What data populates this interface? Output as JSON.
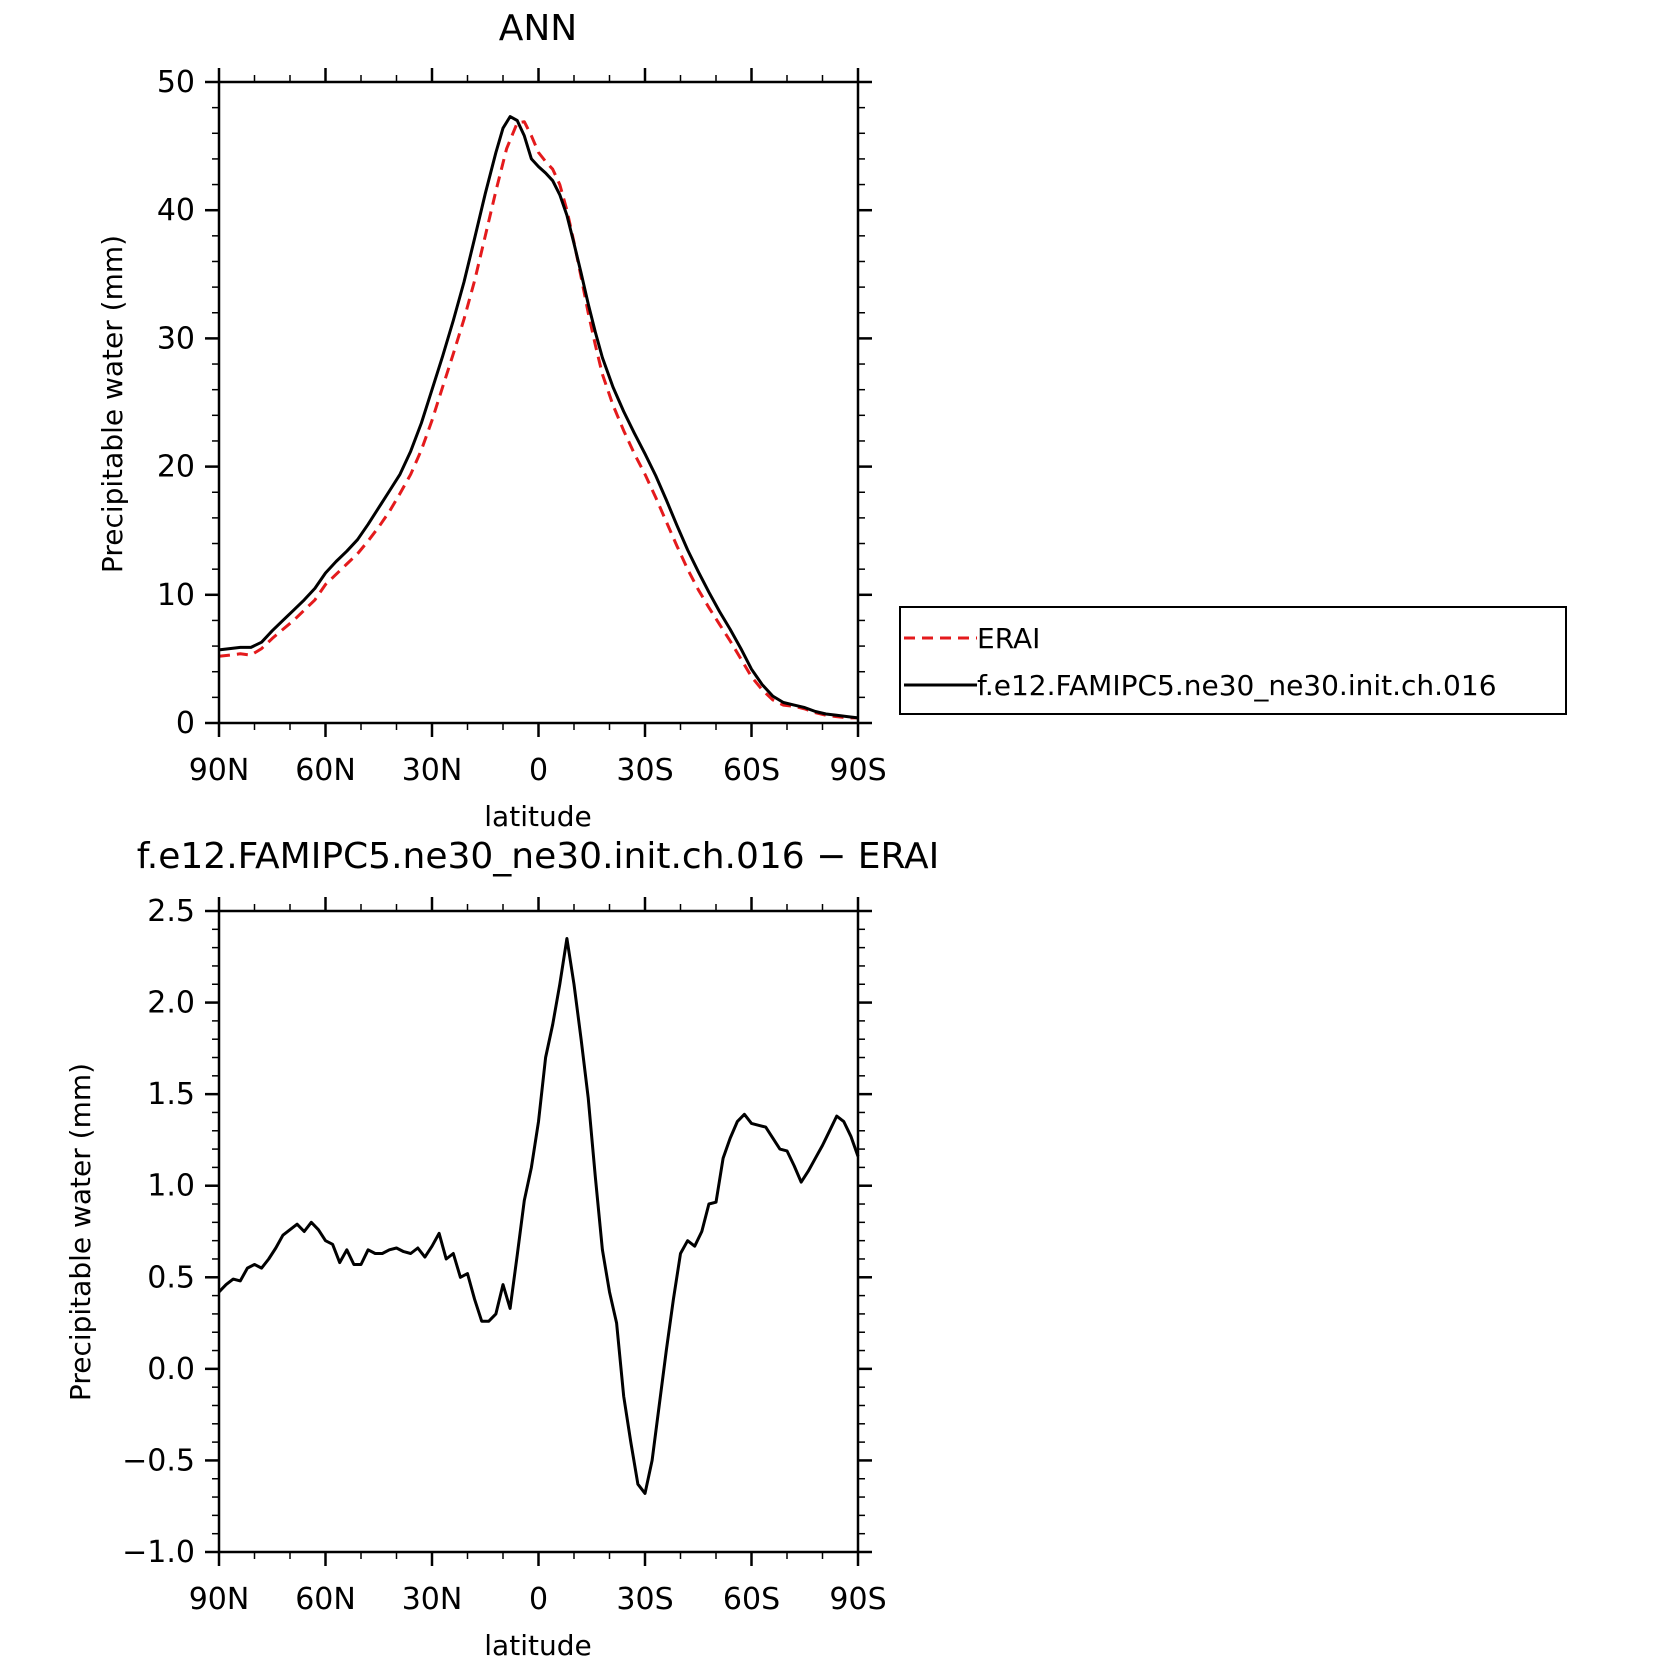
{
  "figure": {
    "background": "#ffffff"
  },
  "chart_data": [
    {
      "type": "line",
      "title": "ANN",
      "xlabel": "latitude",
      "ylabel": "Precipitable water (mm)",
      "xlim": [
        90,
        -90
      ],
      "ylim": [
        0,
        50
      ],
      "x_ticks": [
        90,
        60,
        30,
        0,
        -30,
        -60,
        -90
      ],
      "x_tick_labels": [
        "90N",
        "60N",
        "30N",
        "0",
        "30S",
        "60S",
        "90S"
      ],
      "y_ticks": [
        0,
        10,
        20,
        30,
        40,
        50
      ],
      "y_tick_labels": [
        "0",
        "10",
        "20",
        "30",
        "40",
        "50"
      ],
      "grid": false,
      "legend_position": "right",
      "series": [
        {
          "name": "ERAI",
          "color": "#e41a1c",
          "dash": "dashed",
          "points": [
            [
              90,
              5.2
            ],
            [
              87,
              5.3
            ],
            [
              84,
              5.4
            ],
            [
              81,
              5.3
            ],
            [
              78,
              5.8
            ],
            [
              75,
              6.6
            ],
            [
              72,
              7.3
            ],
            [
              69,
              8.0
            ],
            [
              66,
              8.8
            ],
            [
              63,
              9.6
            ],
            [
              60,
              10.8
            ],
            [
              57,
              11.6
            ],
            [
              54,
              12.4
            ],
            [
              51,
              13.2
            ],
            [
              48,
              14.2
            ],
            [
              45,
              15.3
            ],
            [
              42,
              16.5
            ],
            [
              39,
              17.9
            ],
            [
              36,
              19.4
            ],
            [
              33,
              21.3
            ],
            [
              30,
              23.6
            ],
            [
              27,
              26.2
            ],
            [
              24,
              28.8
            ],
            [
              21,
              31.5
            ],
            [
              18,
              34.5
            ],
            [
              15,
              38.0
            ],
            [
              12,
              41.5
            ],
            [
              9,
              44.8
            ],
            [
              6,
              46.8
            ],
            [
              4,
              46.9
            ],
            [
              2,
              45.8
            ],
            [
              0,
              44.5
            ],
            [
              -2,
              43.8
            ],
            [
              -4,
              43.2
            ],
            [
              -6,
              42.0
            ],
            [
              -8,
              40.0
            ],
            [
              -10,
              37.5
            ],
            [
              -12,
              34.8
            ],
            [
              -14,
              32.0
            ],
            [
              -16,
              29.5
            ],
            [
              -18,
              27.2
            ],
            [
              -21,
              24.8
            ],
            [
              -24,
              22.8
            ],
            [
              -27,
              21.0
            ],
            [
              -30,
              19.4
            ],
            [
              -33,
              17.6
            ],
            [
              -36,
              15.7
            ],
            [
              -39,
              13.8
            ],
            [
              -42,
              12.0
            ],
            [
              -45,
              10.4
            ],
            [
              -48,
              9.0
            ],
            [
              -51,
              7.7
            ],
            [
              -54,
              6.4
            ],
            [
              -57,
              5.0
            ],
            [
              -60,
              3.6
            ],
            [
              -63,
              2.6
            ],
            [
              -66,
              1.8
            ],
            [
              -69,
              1.4
            ],
            [
              -72,
              1.3
            ],
            [
              -75,
              1.1
            ],
            [
              -78,
              0.8
            ],
            [
              -81,
              0.6
            ],
            [
              -84,
              0.5
            ],
            [
              -87,
              0.4
            ],
            [
              -90,
              0.4
            ]
          ]
        },
        {
          "name": "f.e12.FAMIPC5.ne30_ne30.init.ch.016",
          "color": "#000000",
          "dash": "solid",
          "points": [
            [
              90,
              5.7
            ],
            [
              87,
              5.8
            ],
            [
              84,
              5.9
            ],
            [
              81,
              5.9
            ],
            [
              78,
              6.3
            ],
            [
              75,
              7.2
            ],
            [
              72,
              8.0
            ],
            [
              69,
              8.8
            ],
            [
              66,
              9.6
            ],
            [
              63,
              10.5
            ],
            [
              60,
              11.7
            ],
            [
              57,
              12.6
            ],
            [
              54,
              13.4
            ],
            [
              51,
              14.3
            ],
            [
              48,
              15.5
            ],
            [
              45,
              16.8
            ],
            [
              42,
              18.1
            ],
            [
              39,
              19.4
            ],
            [
              36,
              21.2
            ],
            [
              33,
              23.4
            ],
            [
              30,
              26.0
            ],
            [
              27,
              28.6
            ],
            [
              24,
              31.4
            ],
            [
              21,
              34.4
            ],
            [
              18,
              37.8
            ],
            [
              15,
              41.3
            ],
            [
              12,
              44.5
            ],
            [
              10,
              46.4
            ],
            [
              8,
              47.3
            ],
            [
              6,
              47.0
            ],
            [
              4,
              45.8
            ],
            [
              2,
              44.0
            ],
            [
              0,
              43.4
            ],
            [
              -2,
              42.9
            ],
            [
              -4,
              42.3
            ],
            [
              -6,
              41.2
            ],
            [
              -8,
              39.6
            ],
            [
              -10,
              37.4
            ],
            [
              -12,
              35.1
            ],
            [
              -14,
              32.7
            ],
            [
              -16,
              30.5
            ],
            [
              -18,
              28.5
            ],
            [
              -21,
              26.2
            ],
            [
              -24,
              24.3
            ],
            [
              -27,
              22.6
            ],
            [
              -30,
              21.0
            ],
            [
              -33,
              19.3
            ],
            [
              -36,
              17.4
            ],
            [
              -39,
              15.4
            ],
            [
              -42,
              13.5
            ],
            [
              -45,
              11.8
            ],
            [
              -48,
              10.2
            ],
            [
              -51,
              8.7
            ],
            [
              -54,
              7.3
            ],
            [
              -57,
              5.8
            ],
            [
              -60,
              4.2
            ],
            [
              -63,
              3.0
            ],
            [
              -66,
              2.1
            ],
            [
              -69,
              1.6
            ],
            [
              -72,
              1.4
            ],
            [
              -75,
              1.2
            ],
            [
              -78,
              0.9
            ],
            [
              -81,
              0.7
            ],
            [
              -84,
              0.6
            ],
            [
              -87,
              0.5
            ],
            [
              -90,
              0.4
            ]
          ]
        }
      ]
    },
    {
      "type": "line",
      "title": "f.e12.FAMIPC5.ne30_ne30.init.ch.016 − ERAI",
      "xlabel": "latitude",
      "ylabel": "Precipitable water (mm)",
      "xlim": [
        90,
        -90
      ],
      "ylim": [
        -1.0,
        2.5
      ],
      "x_ticks": [
        90,
        60,
        30,
        0,
        -30,
        -60,
        -90
      ],
      "x_tick_labels": [
        "90N",
        "60N",
        "30N",
        "0",
        "30S",
        "60S",
        "90S"
      ],
      "y_ticks": [
        -1.0,
        -0.5,
        0.0,
        0.5,
        1.0,
        1.5,
        2.0,
        2.5
      ],
      "y_tick_labels": [
        "−1.0",
        "−0.5",
        "0.0",
        "0.5",
        "1.0",
        "1.5",
        "2.0",
        "2.5"
      ],
      "grid": false,
      "series": [
        {
          "color": "#000000",
          "dash": "solid",
          "points": [
            [
              90,
              0.42
            ],
            [
              88,
              0.46
            ],
            [
              86,
              0.49
            ],
            [
              84,
              0.48
            ],
            [
              82,
              0.55
            ],
            [
              80,
              0.57
            ],
            [
              78,
              0.55
            ],
            [
              76,
              0.6
            ],
            [
              74,
              0.66
            ],
            [
              72,
              0.73
            ],
            [
              70,
              0.76
            ],
            [
              68,
              0.79
            ],
            [
              66,
              0.75
            ],
            [
              64,
              0.8
            ],
            [
              62,
              0.76
            ],
            [
              60,
              0.7
            ],
            [
              58,
              0.68
            ],
            [
              56,
              0.58
            ],
            [
              54,
              0.65
            ],
            [
              52,
              0.57
            ],
            [
              50,
              0.57
            ],
            [
              48,
              0.65
            ],
            [
              46,
              0.63
            ],
            [
              44,
              0.63
            ],
            [
              42,
              0.65
            ],
            [
              40,
              0.66
            ],
            [
              38,
              0.64
            ],
            [
              36,
              0.63
            ],
            [
              34,
              0.66
            ],
            [
              32,
              0.61
            ],
            [
              30,
              0.67
            ],
            [
              28,
              0.74
            ],
            [
              26,
              0.6
            ],
            [
              24,
              0.63
            ],
            [
              22,
              0.5
            ],
            [
              20,
              0.52
            ],
            [
              18,
              0.38
            ],
            [
              16,
              0.26
            ],
            [
              14,
              0.26
            ],
            [
              12,
              0.3
            ],
            [
              10,
              0.46
            ],
            [
              8,
              0.33
            ],
            [
              6,
              0.62
            ],
            [
              4,
              0.92
            ],
            [
              2,
              1.1
            ],
            [
              0,
              1.35
            ],
            [
              -2,
              1.7
            ],
            [
              -4,
              1.88
            ],
            [
              -6,
              2.1
            ],
            [
              -8,
              2.35
            ],
            [
              -10,
              2.1
            ],
            [
              -12,
              1.8
            ],
            [
              -14,
              1.48
            ],
            [
              -16,
              1.05
            ],
            [
              -18,
              0.65
            ],
            [
              -20,
              0.42
            ],
            [
              -22,
              0.25
            ],
            [
              -24,
              -0.15
            ],
            [
              -26,
              -0.4
            ],
            [
              -28,
              -0.63
            ],
            [
              -30,
              -0.68
            ],
            [
              -32,
              -0.5
            ],
            [
              -34,
              -0.2
            ],
            [
              -36,
              0.1
            ],
            [
              -38,
              0.38
            ],
            [
              -40,
              0.63
            ],
            [
              -42,
              0.7
            ],
            [
              -44,
              0.67
            ],
            [
              -46,
              0.75
            ],
            [
              -48,
              0.9
            ],
            [
              -50,
              0.91
            ],
            [
              -52,
              1.15
            ],
            [
              -54,
              1.26
            ],
            [
              -56,
              1.35
            ],
            [
              -58,
              1.39
            ],
            [
              -60,
              1.34
            ],
            [
              -62,
              1.33
            ],
            [
              -64,
              1.32
            ],
            [
              -66,
              1.26
            ],
            [
              -68,
              1.2
            ],
            [
              -70,
              1.19
            ],
            [
              -72,
              1.11
            ],
            [
              -74,
              1.02
            ],
            [
              -76,
              1.08
            ],
            [
              -78,
              1.15
            ],
            [
              -80,
              1.22
            ],
            [
              -82,
              1.3
            ],
            [
              -84,
              1.38
            ],
            [
              -86,
              1.35
            ],
            [
              -88,
              1.27
            ],
            [
              -90,
              1.16
            ]
          ]
        }
      ]
    }
  ]
}
